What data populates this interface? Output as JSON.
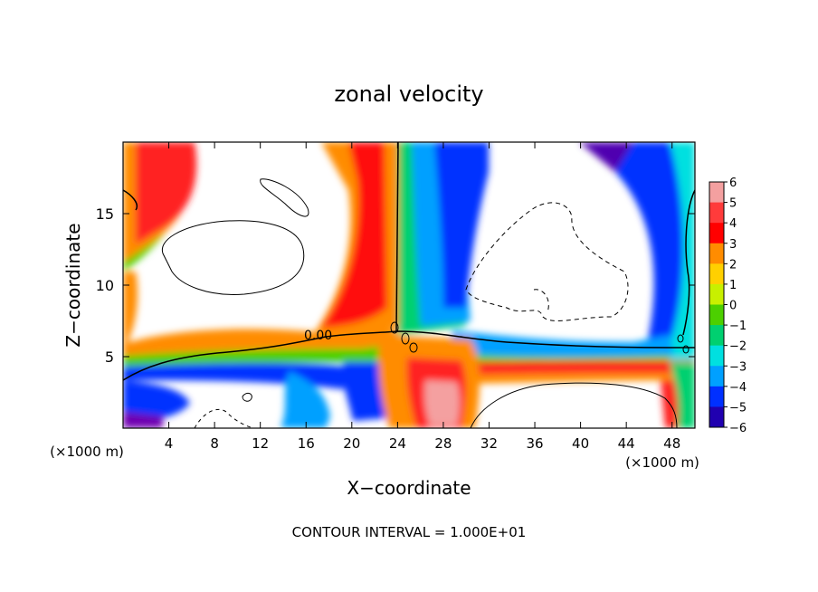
{
  "chart_data": {
    "type": "heatmap",
    "title": "zonal velocity",
    "xlabel": "X−coordinate",
    "ylabel": "Z−coordinate",
    "x_unit_left": "(×1000 m)",
    "x_unit_right": "(×1000 m)",
    "xlim": [
      0,
      50
    ],
    "ylim": [
      0,
      20
    ],
    "x_ticks": [
      4,
      8,
      12,
      16,
      20,
      24,
      28,
      32,
      36,
      40,
      44,
      48
    ],
    "x_tick_labels": [
      "4",
      "8",
      "12",
      "16",
      "20",
      "24",
      "28",
      "32",
      "36",
      "40",
      "44",
      "48"
    ],
    "y_ticks": [
      5,
      10,
      15
    ],
    "y_tick_labels": [
      "5",
      "10",
      "15"
    ],
    "colorbar": {
      "min": -6,
      "max": 6,
      "levels": [
        6,
        5,
        4,
        3,
        2,
        1,
        0,
        -1,
        -2,
        -3,
        -4,
        -5,
        -6
      ],
      "labels": [
        "6",
        "5",
        "4",
        "3",
        "2",
        "1",
        "0",
        "−1",
        "−2",
        "−3",
        "−4",
        "−5",
        "−6"
      ],
      "colors": [
        "#f4a0a0",
        "#ff3b3b",
        "#ff0000",
        "#ff8c00",
        "#ffd000",
        "#c8f000",
        "#4cd000",
        "#00d070",
        "#00e0e0",
        "#00a0ff",
        "#0030ff",
        "#2000b0",
        "#7000b0"
      ]
    },
    "contour_label": "0.00",
    "footer": "CONTOUR INTERVAL = 1.000E+01"
  },
  "colors": {
    "background": "#ffffff",
    "saturated_region": "#ffffff"
  }
}
